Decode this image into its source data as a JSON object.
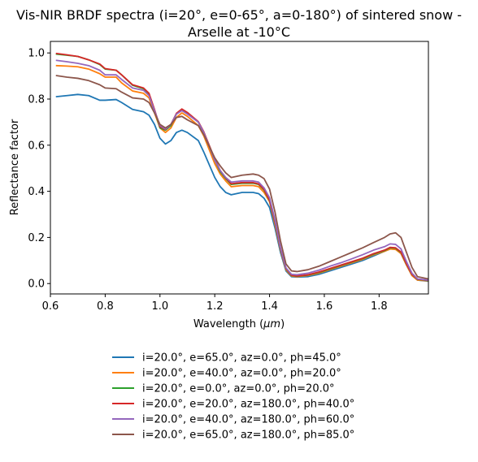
{
  "chart_data": {
    "type": "line",
    "title_line1": "Vis-NIR BRDF spectra (i=20°, e=0-65°, a=0-180°) of sintered snow -",
    "title_line2": "Arselle at -10°C",
    "xlabel_prefix": "Wavelength (",
    "xlabel_unit": "μm",
    "xlabel_suffix": ")",
    "ylabel": "Reflectance factor",
    "xlim": [
      0.6,
      1.98
    ],
    "ylim": [
      -0.045,
      1.05
    ],
    "xticks": [
      0.6,
      0.8,
      1.0,
      1.2,
      1.4,
      1.6,
      1.8
    ],
    "xtick_labels": [
      "0.6",
      "0.8",
      "1.0",
      "1.2",
      "1.4",
      "1.6",
      "1.8"
    ],
    "yticks": [
      0.0,
      0.2,
      0.4,
      0.6,
      0.8,
      1.0
    ],
    "ytick_labels": [
      "0.0",
      "0.2",
      "0.4",
      "0.6",
      "0.8",
      "1.0"
    ],
    "grid": false,
    "legend_position": "below",
    "x": [
      0.62,
      0.66,
      0.7,
      0.74,
      0.78,
      0.8,
      0.84,
      0.86,
      0.9,
      0.94,
      0.96,
      0.98,
      1.0,
      1.02,
      1.04,
      1.06,
      1.08,
      1.1,
      1.14,
      1.16,
      1.2,
      1.22,
      1.24,
      1.26,
      1.3,
      1.34,
      1.36,
      1.38,
      1.4,
      1.42,
      1.44,
      1.46,
      1.48,
      1.5,
      1.54,
      1.58,
      1.62,
      1.66,
      1.7,
      1.74,
      1.78,
      1.82,
      1.84,
      1.86,
      1.88,
      1.9,
      1.92,
      1.94,
      1.98
    ],
    "series": [
      {
        "name": "i=20.0°, e=65.0°, az=0.0°, ph=45.0°",
        "color": "#1f77b4",
        "values": [
          0.81,
          0.815,
          0.82,
          0.815,
          0.795,
          0.795,
          0.798,
          0.785,
          0.755,
          0.745,
          0.73,
          0.69,
          0.63,
          0.605,
          0.62,
          0.655,
          0.665,
          0.655,
          0.62,
          0.57,
          0.46,
          0.42,
          0.395,
          0.385,
          0.395,
          0.395,
          0.39,
          0.37,
          0.33,
          0.24,
          0.135,
          0.055,
          0.03,
          0.028,
          0.03,
          0.04,
          0.055,
          0.07,
          0.085,
          0.1,
          0.12,
          0.14,
          0.15,
          0.15,
          0.13,
          0.08,
          0.035,
          0.015,
          0.01
        ]
      },
      {
        "name": "i=20.0°, e=40.0°, az=0.0°, ph=20.0°",
        "color": "#ff7f0e",
        "values": [
          0.945,
          0.943,
          0.94,
          0.93,
          0.91,
          0.895,
          0.895,
          0.87,
          0.835,
          0.825,
          0.805,
          0.74,
          0.675,
          0.655,
          0.675,
          0.72,
          0.74,
          0.725,
          0.685,
          0.64,
          0.52,
          0.475,
          0.445,
          0.42,
          0.425,
          0.425,
          0.42,
          0.395,
          0.355,
          0.255,
          0.145,
          0.06,
          0.033,
          0.03,
          0.035,
          0.045,
          0.06,
          0.075,
          0.09,
          0.105,
          0.125,
          0.14,
          0.15,
          0.148,
          0.13,
          0.08,
          0.035,
          0.015,
          0.012
        ]
      },
      {
        "name": "i=20.0°, e=0.0°, az=0.0°, ph=20.0°",
        "color": "#2ca02c",
        "values": [
          0.995,
          0.99,
          0.985,
          0.97,
          0.95,
          0.93,
          0.925,
          0.905,
          0.86,
          0.845,
          0.82,
          0.75,
          0.675,
          0.665,
          0.685,
          0.735,
          0.755,
          0.74,
          0.7,
          0.655,
          0.535,
          0.485,
          0.455,
          0.43,
          0.435,
          0.435,
          0.43,
          0.405,
          0.36,
          0.265,
          0.15,
          0.065,
          0.035,
          0.032,
          0.037,
          0.048,
          0.063,
          0.078,
          0.093,
          0.108,
          0.128,
          0.143,
          0.155,
          0.153,
          0.135,
          0.085,
          0.04,
          0.018,
          0.013
        ]
      },
      {
        "name": "i=20.0°, e=20.0°, az=180.0°, ph=40.0°",
        "color": "#d62728",
        "values": [
          0.998,
          0.992,
          0.985,
          0.97,
          0.952,
          0.932,
          0.925,
          0.905,
          0.862,
          0.848,
          0.825,
          0.755,
          0.68,
          0.668,
          0.69,
          0.738,
          0.757,
          0.742,
          0.702,
          0.658,
          0.54,
          0.49,
          0.458,
          0.433,
          0.438,
          0.438,
          0.432,
          0.408,
          0.362,
          0.268,
          0.152,
          0.066,
          0.036,
          0.033,
          0.038,
          0.05,
          0.065,
          0.08,
          0.095,
          0.11,
          0.13,
          0.145,
          0.157,
          0.155,
          0.137,
          0.086,
          0.04,
          0.019,
          0.014
        ]
      },
      {
        "name": "i=20.0°, e=40.0°, az=180.0°, ph=60.0°",
        "color": "#9467bd",
        "values": [
          0.968,
          0.962,
          0.955,
          0.945,
          0.925,
          0.905,
          0.905,
          0.885,
          0.848,
          0.838,
          0.815,
          0.75,
          0.685,
          0.67,
          0.69,
          0.735,
          0.75,
          0.735,
          0.7,
          0.655,
          0.535,
          0.49,
          0.46,
          0.44,
          0.445,
          0.445,
          0.44,
          0.415,
          0.372,
          0.275,
          0.155,
          0.068,
          0.04,
          0.038,
          0.045,
          0.058,
          0.075,
          0.09,
          0.107,
          0.125,
          0.145,
          0.16,
          0.172,
          0.17,
          0.15,
          0.095,
          0.045,
          0.02,
          0.015
        ]
      },
      {
        "name": "i=20.0°, e=65.0°, az=180.0°, ph=85.0°",
        "color": "#8c564b",
        "values": [
          0.902,
          0.895,
          0.89,
          0.88,
          0.862,
          0.848,
          0.845,
          0.83,
          0.805,
          0.8,
          0.785,
          0.74,
          0.69,
          0.675,
          0.69,
          0.72,
          0.725,
          0.71,
          0.685,
          0.645,
          0.545,
          0.51,
          0.48,
          0.46,
          0.47,
          0.475,
          0.47,
          0.455,
          0.41,
          0.31,
          0.185,
          0.085,
          0.055,
          0.052,
          0.06,
          0.075,
          0.095,
          0.115,
          0.135,
          0.155,
          0.178,
          0.2,
          0.215,
          0.22,
          0.2,
          0.135,
          0.07,
          0.03,
          0.02
        ]
      }
    ]
  }
}
